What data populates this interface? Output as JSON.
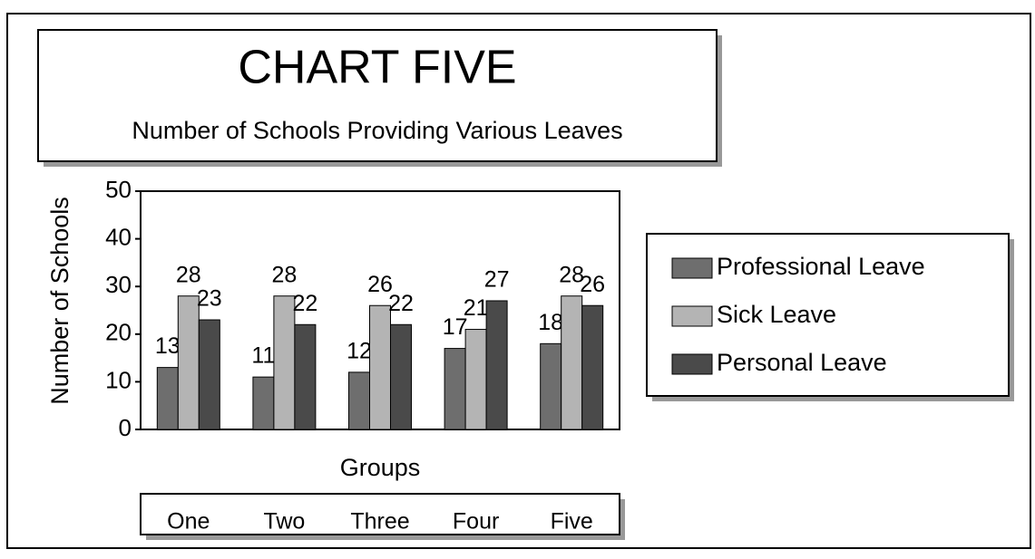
{
  "chart_data": {
    "type": "bar",
    "title": "CHART FIVE",
    "subtitle": "Number of Schools Providing Various Leaves",
    "y_label": "Number of Schools",
    "x_label": "Groups",
    "categories": [
      "One",
      "Two",
      "Three",
      "Four",
      "Five"
    ],
    "series": [
      {
        "name": "Professional Leave",
        "color": "#6e6e6e",
        "values": [
          13,
          11,
          12,
          17,
          18
        ]
      },
      {
        "name": "Sick Leave",
        "color": "#b4b4b4",
        "values": [
          28,
          28,
          26,
          21,
          28
        ]
      },
      {
        "name": "Personal Leave",
        "color": "#4a4a4a",
        "values": [
          23,
          22,
          22,
          27,
          26
        ]
      }
    ],
    "ylim": [
      0,
      50
    ],
    "yticks": [
      0,
      10,
      20,
      30,
      40,
      50
    ],
    "legend": "right"
  }
}
